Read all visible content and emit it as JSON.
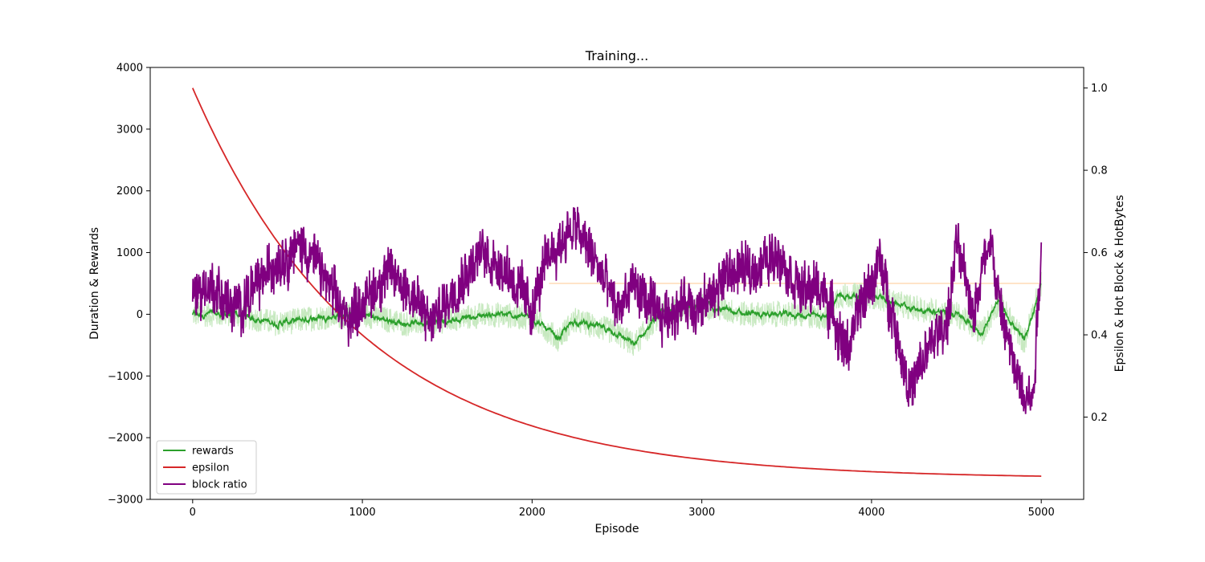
{
  "chart_data": {
    "type": "line",
    "title": "Training...",
    "xlabel": "Episode",
    "ylabel_left": "Duration & Rewards",
    "ylabel_right": "Epsilon & Hot Block & HotBytes",
    "xlim": [
      -250,
      5250
    ],
    "ylim_left": [
      -3000,
      4000
    ],
    "ylim_right": [
      0.0,
      1.05
    ],
    "x_ticks": [
      0,
      1000,
      2000,
      3000,
      4000,
      5000
    ],
    "x_tick_labels": [
      "0",
      "1000",
      "2000",
      "3000",
      "4000",
      "5000"
    ],
    "y_left_ticks": [
      -3000,
      -2000,
      -1000,
      0,
      1000,
      2000,
      3000,
      4000
    ],
    "y_left_tick_labels": [
      "−3000",
      "−2000",
      "−1000",
      "0",
      "1000",
      "2000",
      "3000",
      "4000"
    ],
    "y_right_ticks": [
      0.2,
      0.4,
      0.6,
      0.8,
      1.0
    ],
    "y_right_tick_labels": [
      "0.2",
      "0.4",
      "0.6",
      "0.8",
      "1.0"
    ],
    "grid": false,
    "legend_position": "lower-left",
    "legend": [
      "rewards",
      "epsilon",
      "block ratio"
    ],
    "series": [
      {
        "name": "rewards",
        "axis": "left",
        "color": "#2ca02c",
        "raw_color": "#c7e9c0",
        "x": [
          0,
          250,
          500,
          750,
          1000,
          1250,
          1500,
          1750,
          2000,
          2150,
          2250,
          2500,
          2600,
          2750,
          3000,
          3250,
          3500,
          3750,
          3800,
          4000,
          4250,
          4500,
          4650,
          4750,
          4900,
          5000
        ],
        "values": [
          0,
          0,
          -150,
          -50,
          0,
          -150,
          -100,
          0,
          -50,
          -400,
          -100,
          -300,
          -500,
          0,
          150,
          0,
          0,
          -50,
          300,
          300,
          100,
          0,
          -300,
          200,
          -450,
          500
        ]
      },
      {
        "name": "epsilon",
        "axis": "right",
        "color": "#d62728",
        "x_start": 0,
        "x_end": 5000,
        "start": 1.0,
        "end": 0.05,
        "decay": 0.001
      },
      {
        "name": "block ratio",
        "axis": "right",
        "color": "#800080",
        "x": [
          0,
          100,
          250,
          400,
          500,
          650,
          750,
          900,
          1000,
          1150,
          1300,
          1400,
          1550,
          1700,
          1850,
          2000,
          2100,
          2250,
          2350,
          2500,
          2600,
          2750,
          2900,
          3000,
          3150,
          3300,
          3450,
          3600,
          3700,
          3850,
          3950,
          4050,
          4150,
          4230,
          4350,
          4450,
          4500,
          4600,
          4700,
          4750,
          4850,
          4950,
          5000
        ],
        "values": [
          0.5,
          0.52,
          0.46,
          0.53,
          0.58,
          0.62,
          0.56,
          0.44,
          0.48,
          0.55,
          0.5,
          0.42,
          0.52,
          0.6,
          0.56,
          0.46,
          0.6,
          0.66,
          0.6,
          0.46,
          0.52,
          0.44,
          0.48,
          0.46,
          0.55,
          0.56,
          0.6,
          0.5,
          0.52,
          0.36,
          0.48,
          0.58,
          0.4,
          0.26,
          0.38,
          0.44,
          0.62,
          0.46,
          0.64,
          0.48,
          0.3,
          0.24,
          0.62
        ]
      },
      {
        "name": "",
        "axis": "left",
        "color": "#ffe4c8",
        "x": [
          2100,
          5000
        ],
        "values": [
          500,
          500
        ]
      }
    ]
  }
}
